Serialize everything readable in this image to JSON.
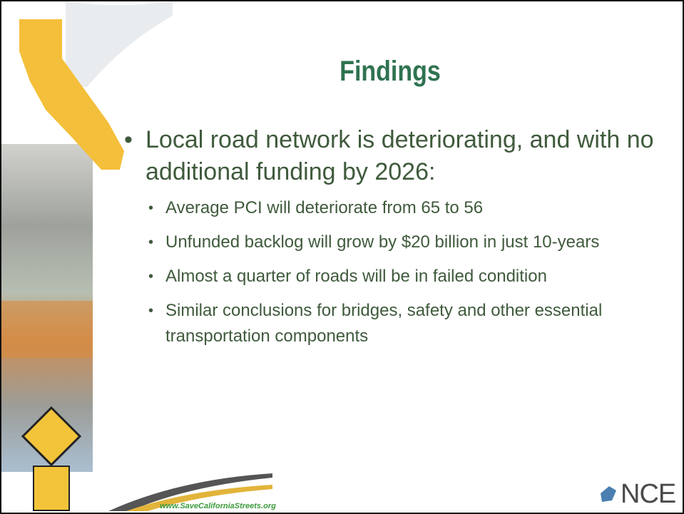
{
  "slide": {
    "title": "Findings",
    "bullets": [
      {
        "text": "Local road network is deteriorating, and with no additional funding by 2026:",
        "subbullets": [
          "Average PCI will deteriorate from 65 to 56",
          "Unfunded backlog will grow by $20 billion in just 10-years",
          "Almost a quarter of roads will be in failed condition",
          "Similar conclusions for bridges, safety and other essential transportation components"
        ]
      }
    ],
    "footer_url": "www.SaveCaliforniaStreets.org",
    "logo": "NCE"
  }
}
